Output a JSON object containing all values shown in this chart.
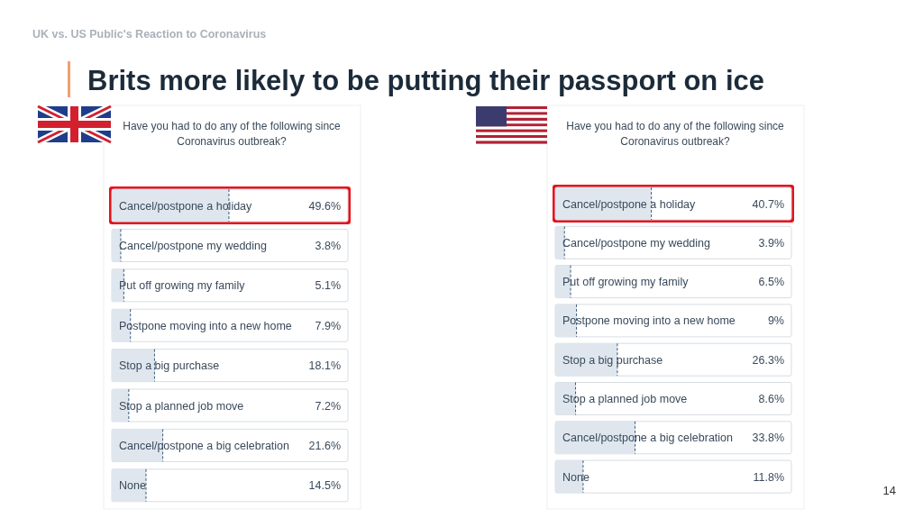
{
  "chart_data": [
    {
      "type": "bar",
      "orientation": "horizontal",
      "title": "Have you had to do any of the following since Coronavirus outbreak?",
      "annotations": [
        "UK vs. US Public's Reaction to Coronavirus",
        "Brits more likely to be putting their passport on ice"
      ],
      "categories": [
        "Cancel/postpone a holiday",
        "Cancel/postpone my wedding",
        "Put off growing my family",
        "Postpone moving into a new home",
        "Stop a big purchase",
        "Stop a planned job move",
        "Cancel/postpone a big celebration",
        "None"
      ],
      "values": [
        49.6,
        3.8,
        5.1,
        7.9,
        18.1,
        7.2,
        21.6,
        14.5
      ],
      "value_labels": [
        "49.6%",
        "3.8%",
        "5.1%",
        "7.9%",
        "18.1%",
        "7.2%",
        "21.6%",
        "14.5%"
      ],
      "color": "#dfe6ee",
      "xlim": [
        0,
        100
      ],
      "bands": [
        {
          "axis": "y",
          "from": "Cancel/postpone a holiday",
          "to": "Cancel/postpone a holiday",
          "color": "#e8101a"
        }
      ]
    },
    {
      "type": "bar",
      "orientation": "horizontal",
      "title": "Have you had to do any of the following since Coronavirus outbreak?",
      "annotations": [
        "14"
      ],
      "categories": [
        "Cancel/postpone a holiday",
        "Cancel/postpone my wedding",
        "Put off growing my family",
        "Postpone moving into a new home",
        "Stop a big purchase",
        "Stop a planned job move",
        "Cancel/postpone a big celebration",
        "None"
      ],
      "values": [
        40.7,
        3.9,
        6.5,
        9,
        26.3,
        8.6,
        33.8,
        11.8
      ],
      "value_labels": [
        "40.7%",
        "3.9%",
        "6.5%",
        "9%",
        "26.3%",
        "8.6%",
        "33.8%",
        "11.8%"
      ],
      "color": "#dfe6ee",
      "xlim": [
        0,
        100
      ],
      "bands": [
        {
          "axis": "y",
          "from": "Cancel/postpone a holiday",
          "to": "Cancel/postpone a holiday",
          "color": "#e8101a"
        }
      ]
    }
  ]
}
